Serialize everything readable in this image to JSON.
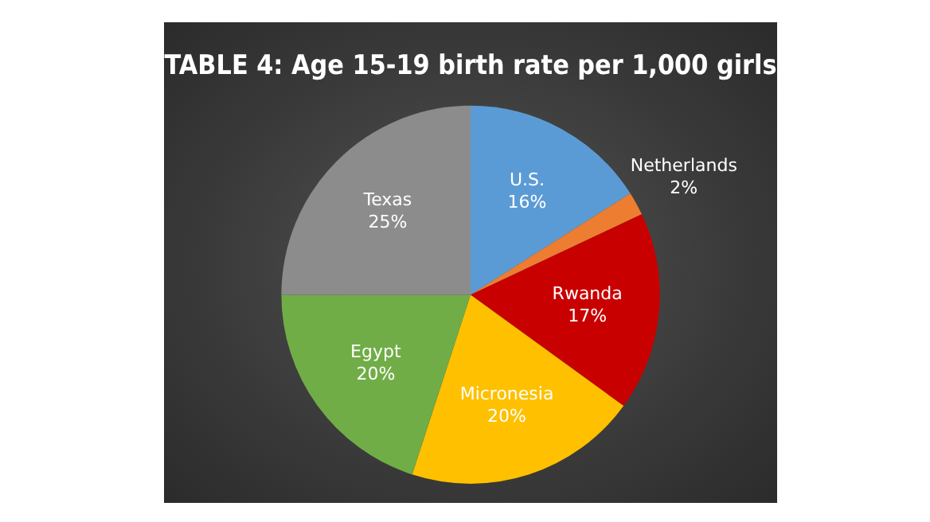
{
  "chart_data": {
    "type": "pie",
    "title": "TABLE 4: Age 15-19 birth rate per 1,000 girls",
    "categories": [
      "U.S.",
      "Netherlands",
      "Rwanda",
      "Micronesia",
      "Egypt",
      "Texas"
    ],
    "values": [
      16,
      2,
      17,
      20,
      20,
      25
    ],
    "value_labels": [
      "16%",
      "2%",
      "17%",
      "20%",
      "20%",
      "25%"
    ],
    "colors": [
      "#5b9bd5",
      "#ed7d31",
      "#c80000",
      "#ffc000",
      "#70ad47",
      "#8c8c8c"
    ],
    "legend": false
  }
}
